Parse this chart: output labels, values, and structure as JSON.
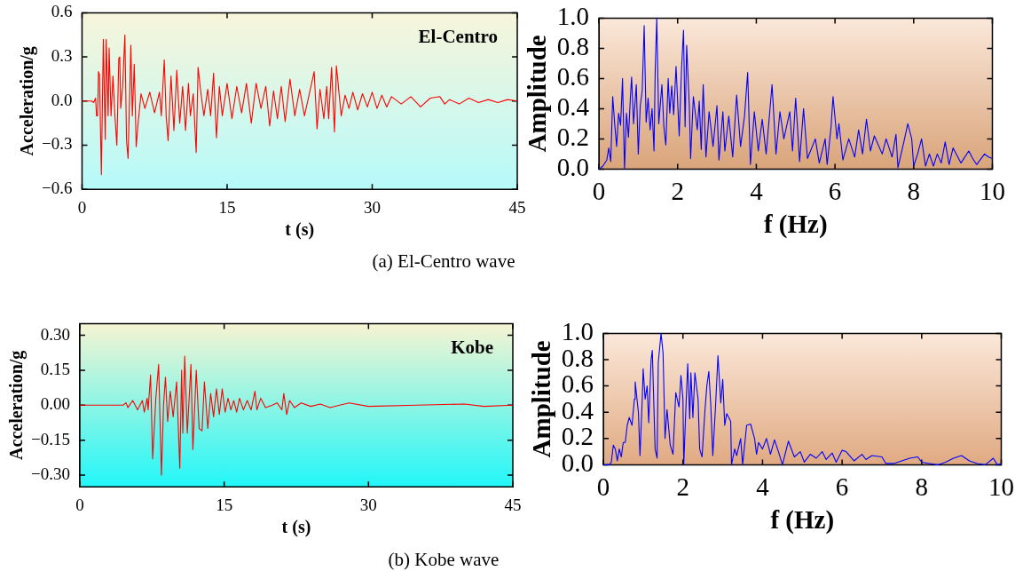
{
  "chart_data": [
    {
      "type": "line",
      "xlabel": "t (s)",
      "ylabel": "Acceleration/g",
      "annotations": [
        "El-Centro",
        "(a) El-Centro wave"
      ],
      "color": "#ff0000",
      "xlim": [
        0,
        45
      ],
      "xticks": [
        0,
        15,
        30,
        45
      ],
      "ylim": [
        -0.6,
        0.6
      ],
      "yticks": [
        {
          "value": -0.6,
          "label": "−0.6"
        },
        {
          "value": -0.3,
          "label": "−0.3"
        },
        {
          "value": 0,
          "label": "0.0"
        },
        0.3,
        0.6
      ],
      "x": [
        0,
        1,
        1.2,
        1.4,
        1.5,
        1.6,
        1.7,
        1.8,
        2.0,
        2.2,
        2.4,
        2.5,
        2.7,
        2.8,
        3.0,
        3.2,
        3.4,
        3.6,
        3.8,
        3.9,
        4.0,
        4.2,
        4.43,
        4.6,
        4.76,
        5.05,
        5.2,
        5.4,
        5.6,
        5.8,
        6.1,
        6.5,
        7,
        7.5,
        8,
        8.2,
        8.5,
        8.7,
        8.9,
        9.2,
        9.5,
        9.8,
        10.1,
        10.4,
        10.7,
        11,
        11.2,
        11.5,
        11.8,
        12.0,
        12.3,
        12.6,
        13,
        13.3,
        13.6,
        13.9,
        14.2,
        14.5,
        15,
        15.5,
        16,
        16.5,
        17,
        17.5,
        18,
        18.5,
        19,
        19.4,
        19.8,
        20.2,
        20.6,
        21,
        21.5,
        22,
        22.5,
        23,
        23.5,
        24,
        24.3,
        24.6,
        25,
        25.3,
        25.5,
        25.8,
        26.1,
        26.3,
        26.8,
        27.2,
        27.6,
        28,
        28.5,
        29,
        29.5,
        30,
        30.5,
        31,
        31.5,
        32,
        33,
        34,
        35,
        36,
        37,
        37.5,
        38,
        39,
        40,
        41,
        42,
        43,
        44,
        45
      ],
      "values": [
        0,
        0,
        -0.01,
        0.02,
        -0.1,
        -0.1,
        0.2,
        0.18,
        -0.5,
        0.42,
        -0.26,
        0.42,
        -0.1,
        0.36,
        -0.1,
        0.17,
        -0.1,
        -0.3,
        0.29,
        0.3,
        -0.05,
        0.1,
        0.45,
        -0.27,
        -0.39,
        0.38,
        -0.1,
        0.25,
        -0.31,
        -0.15,
        0.05,
        -0.05,
        0.06,
        -0.08,
        0.06,
        -0.1,
        0.28,
        -0.1,
        -0.27,
        0.17,
        -0.2,
        0.21,
        -0.15,
        0.1,
        -0.2,
        0.12,
        -0.1,
        0.05,
        -0.35,
        0.23,
        0.05,
        -0.1,
        0.08,
        -0.1,
        0.19,
        -0.25,
        0.1,
        -0.1,
        0.12,
        -0.12,
        0.1,
        -0.08,
        0.12,
        -0.15,
        0.12,
        -0.05,
        0.1,
        -0.17,
        0.07,
        -0.12,
        0.1,
        -0.14,
        0.15,
        -0.1,
        0.08,
        -0.1,
        0.05,
        0.2,
        -0.19,
        0.08,
        -0.12,
        0.1,
        -0.12,
        0.23,
        -0.21,
        0.24,
        -0.1,
        0.04,
        -0.05,
        0.06,
        -0.06,
        0.05,
        -0.04,
        0.06,
        -0.05,
        0.04,
        -0.04,
        0.03,
        -0.02,
        0.03,
        -0.04,
        0.02,
        0.03,
        -0.02,
        0.01,
        -0.02,
        0.02,
        -0.01,
        0.01,
        -0.01,
        0.01,
        0
      ]
    },
    {
      "type": "line",
      "xlabel": "f (Hz)",
      "ylabel": "Amplitude",
      "color": "#0000ff",
      "xlim": [
        0,
        10
      ],
      "xticks": [
        0,
        2,
        4,
        6,
        8,
        10
      ],
      "ylim": [
        0,
        1
      ],
      "yticks": [
        {
          "value": 0,
          "label": "0.0"
        },
        0.2,
        0.4,
        0.6,
        0.8,
        {
          "value": 1,
          "label": "1.0"
        }
      ],
      "x": [
        0,
        0.1,
        0.2,
        0.25,
        0.3,
        0.35,
        0.4,
        0.45,
        0.5,
        0.55,
        0.6,
        0.65,
        0.7,
        0.75,
        0.8,
        0.83,
        0.88,
        0.95,
        1.0,
        1.05,
        1.1,
        1.15,
        1.2,
        1.25,
        1.3,
        1.35,
        1.4,
        1.43,
        1.47,
        1.52,
        1.6,
        1.65,
        1.7,
        1.76,
        1.8,
        1.85,
        1.9,
        1.96,
        2.04,
        2.1,
        2.15,
        2.19,
        2.23,
        2.3,
        2.33,
        2.4,
        2.5,
        2.55,
        2.6,
        2.65,
        2.72,
        2.8,
        2.9,
        3.0,
        3.05,
        3.15,
        3.2,
        3.3,
        3.4,
        3.5,
        3.6,
        3.7,
        3.78,
        3.85,
        3.95,
        4.05,
        4.15,
        4.25,
        4.4,
        4.5,
        4.6,
        4.7,
        4.85,
        4.92,
        5.0,
        5.1,
        5.2,
        5.3,
        5.5,
        5.6,
        5.75,
        5.8,
        5.9,
        5.95,
        6.05,
        6.1,
        6.2,
        6.35,
        6.5,
        6.6,
        6.7,
        6.8,
        6.9,
        7.0,
        7.2,
        7.3,
        7.45,
        7.55,
        7.6,
        7.75,
        7.85,
        7.95,
        8.0,
        8.1,
        8.2,
        8.3,
        8.4,
        8.5,
        8.6,
        8.7,
        8.8,
        8.9,
        9.0,
        9.2,
        9.4,
        9.5,
        9.6,
        9.8,
        9.9,
        10
      ],
      "values": [
        0,
        0.02,
        0.06,
        0.14,
        0.05,
        0.48,
        0.3,
        0.15,
        0.37,
        0.29,
        0.6,
        0.0,
        0.37,
        0.21,
        0.48,
        0.61,
        0.3,
        0.56,
        0.1,
        0.42,
        0.52,
        0.95,
        0.31,
        0.47,
        0.26,
        0.4,
        0.12,
        0.65,
        1.0,
        0.3,
        0.56,
        0.28,
        0.16,
        0.6,
        0.37,
        0.55,
        0.36,
        0.68,
        0.22,
        0.67,
        0.92,
        0.28,
        0.82,
        0.4,
        0.07,
        0.48,
        0.26,
        0.45,
        0.13,
        0.56,
        0.08,
        0.38,
        0.15,
        0.42,
        0.06,
        0.38,
        0.12,
        0.35,
        0.08,
        0.49,
        0.15,
        0.35,
        0.64,
        0.03,
        0.38,
        0.12,
        0.33,
        0.1,
        0.56,
        0.1,
        0.38,
        0.2,
        0.38,
        0.12,
        0.47,
        0.05,
        0.4,
        0.07,
        0.2,
        0.04,
        0.2,
        0.03,
        0.28,
        0.48,
        0.2,
        0.3,
        0.06,
        0.2,
        0.08,
        0.26,
        0.1,
        0.33,
        0.12,
        0.22,
        0.1,
        0.2,
        0.08,
        0.23,
        0.01,
        0.18,
        0.3,
        0.2,
        0.02,
        0.1,
        0.2,
        0.02,
        0.1,
        0.02,
        0.1,
        0.04,
        0.18,
        0.03,
        0.14,
        0.04,
        0.12,
        0.07,
        0.03,
        0.1,
        0.08,
        0.07
      ]
    },
    {
      "type": "line",
      "xlabel": "t (s)",
      "ylabel": "Acceleration/g",
      "annotations": [
        "Kobe",
        "(b) Kobe wave"
      ],
      "color": "#ff0000",
      "xlim": [
        0,
        45
      ],
      "xticks": [
        0,
        15,
        30,
        45
      ],
      "ylim": [
        -0.35,
        0.35
      ],
      "yticks": [
        {
          "value": -0.3,
          "label": "−0.30"
        },
        {
          "value": -0.15,
          "label": "−0.15"
        },
        {
          "value": 0,
          "label": "0.00"
        },
        {
          "value": 0.15,
          "label": "0.15"
        },
        {
          "value": 0.3,
          "label": "0.30"
        }
      ],
      "x": [
        0,
        4.5,
        4.8,
        5,
        5.5,
        6,
        6.5,
        6.7,
        7.0,
        7.1,
        7.35,
        7.57,
        7.9,
        8.19,
        8.48,
        8.7,
        8.9,
        9.13,
        9.4,
        9.7,
        10.06,
        10.39,
        10.58,
        10.7,
        10.9,
        11.17,
        11.55,
        11.75,
        12.1,
        12.4,
        12.7,
        12.95,
        13.3,
        13.6,
        13.9,
        14.2,
        14.5,
        14.8,
        15.1,
        15.4,
        15.7,
        16,
        16.3,
        16.6,
        17,
        17.4,
        17.8,
        18.2,
        18.4,
        18.8,
        19.3,
        20,
        20.5,
        21,
        21.2,
        21.5,
        21.8,
        22.3,
        23,
        24,
        25,
        26,
        27,
        28,
        30,
        35,
        40,
        42,
        45
      ],
      "values": [
        0,
        0,
        0.01,
        -0.01,
        0.02,
        -0.02,
        0.02,
        -0.03,
        0.03,
        -0.02,
        0.13,
        -0.23,
        0.03,
        0.175,
        -0.3,
        0.0,
        0.12,
        -0.07,
        0.06,
        -0.05,
        0.1,
        -0.27,
        0.15,
        -0.12,
        0.21,
        -0.12,
        0.175,
        -0.19,
        0.15,
        -0.1,
        -0.11,
        0.1,
        -0.1,
        0.05,
        -0.05,
        0.07,
        -0.04,
        0.07,
        -0.03,
        0.03,
        -0.02,
        0.02,
        -0.03,
        0.03,
        -0.02,
        0.02,
        -0.02,
        0.06,
        -0.02,
        0.03,
        -0.01,
        0,
        0.01,
        -0.02,
        0.05,
        -0.04,
        0.02,
        -0.01,
        0.01,
        -0.005,
        0.005,
        -0.01,
        0,
        0.01,
        -0.005,
        0,
        0.005,
        -0.005,
        0
      ]
    },
    {
      "type": "line",
      "xlabel": "f (Hz)",
      "ylabel": "Amplitude",
      "color": "#0000ff",
      "xlim": [
        0,
        10
      ],
      "xticks": [
        0,
        2,
        4,
        6,
        8,
        10
      ],
      "ylim": [
        0,
        1
      ],
      "yticks": [
        {
          "value": 0,
          "label": "0.0"
        },
        0.2,
        0.4,
        0.6,
        0.8,
        {
          "value": 1,
          "label": "1.0"
        }
      ],
      "x": [
        0,
        0.15,
        0.2,
        0.25,
        0.3,
        0.35,
        0.4,
        0.45,
        0.5,
        0.55,
        0.6,
        0.65,
        0.72,
        0.78,
        0.8,
        0.88,
        0.92,
        0.98,
        1.0,
        1.05,
        1.1,
        1.14,
        1.2,
        1.23,
        1.3,
        1.35,
        1.38,
        1.45,
        1.5,
        1.55,
        1.6,
        1.68,
        1.75,
        1.82,
        1.9,
        1.95,
        2.0,
        2.02,
        2.07,
        2.12,
        2.17,
        2.2,
        2.25,
        2.3,
        2.38,
        2.42,
        2.48,
        2.55,
        2.6,
        2.65,
        2.7,
        2.75,
        2.82,
        2.88,
        2.95,
        3.0,
        3.05,
        3.1,
        3.2,
        3.22,
        3.3,
        3.35,
        3.45,
        3.5,
        3.6,
        3.7,
        3.8,
        3.85,
        3.9,
        4.0,
        4.1,
        4.2,
        4.3,
        4.4,
        4.5,
        4.65,
        4.8,
        4.95,
        5.05,
        5.2,
        5.35,
        5.5,
        5.6,
        5.75,
        5.85,
        6.0,
        6.1,
        6.3,
        6.5,
        6.6,
        6.75,
        7.0,
        7.1,
        7.3,
        7.5,
        7.7,
        7.9,
        8.0,
        8.2,
        8.4,
        8.6,
        8.8,
        9.0,
        9.2,
        9.4,
        9.6,
        9.8,
        9.9,
        10
      ],
      "values": [
        0,
        0,
        0.02,
        0.15,
        0.12,
        0.03,
        0.12,
        0.06,
        0.17,
        0.17,
        0.3,
        0.36,
        0.3,
        0.5,
        0.63,
        0.4,
        0.07,
        0.52,
        0.73,
        0.5,
        0.6,
        0.32,
        0.8,
        0.87,
        0.12,
        0.05,
        0.78,
        1.0,
        0.85,
        0.2,
        0.42,
        0.15,
        0.08,
        0.55,
        0.44,
        0.68,
        0.5,
        0,
        0.4,
        0.77,
        0.35,
        0.7,
        0.36,
        0.7,
        0.5,
        0.12,
        0.06,
        0.4,
        0.6,
        0.71,
        0.45,
        0.07,
        0.45,
        0.83,
        0.47,
        0.65,
        0.3,
        0.39,
        0.33,
        0,
        0.12,
        0.07,
        0.2,
        0,
        0.3,
        0.31,
        0.2,
        0.08,
        0.17,
        0.12,
        0.2,
        0.08,
        0.19,
        0.1,
        0,
        0.18,
        0.06,
        0.1,
        0.02,
        0.08,
        0.05,
        0.1,
        0.04,
        0.09,
        0.02,
        0.11,
        0.1,
        0.03,
        0.08,
        0.04,
        0.07,
        0.06,
        0.01,
        0.01,
        0.03,
        0.05,
        0.06,
        0.02,
        0.01,
        0,
        0.02,
        0.05,
        0.07,
        0.03,
        0.01,
        0,
        0.05,
        0,
        0.01
      ]
    }
  ]
}
